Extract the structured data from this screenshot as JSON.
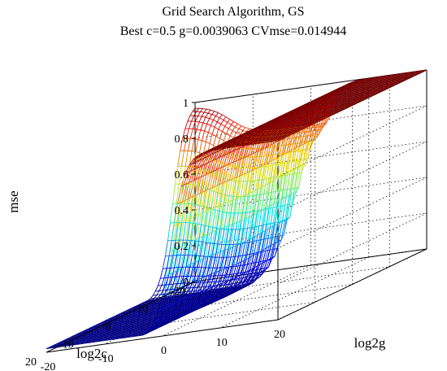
{
  "chart_data": {
    "type": "surface-mesh",
    "title": "Grid Search Algorithm, GS",
    "subtitle": "Best c=0.5 g=0.0039063 CVmse=0.014944",
    "xlabel": "log2c",
    "ylabel": "log2g",
    "zlabel": "mse",
    "x_ticks": [
      -20,
      -10,
      0,
      10,
      20
    ],
    "y_ticks": [
      -20,
      -10,
      0,
      10,
      20
    ],
    "z_ticks": [
      0,
      0.2,
      0.4,
      0.6,
      0.8,
      1
    ],
    "xlim": [
      -20,
      20
    ],
    "ylim": [
      -20,
      20
    ],
    "zlim": [
      0,
      1
    ],
    "grid": true,
    "best": {
      "log2c": -1,
      "log2g": -8,
      "mse": 0.014944
    },
    "surface": {
      "plateau_mse": 1,
      "floor_mse": 0,
      "log2g_transition": [
        -5,
        5
      ],
      "log2c_transition": [
        -20,
        8
      ],
      "colormap": "jet"
    }
  }
}
